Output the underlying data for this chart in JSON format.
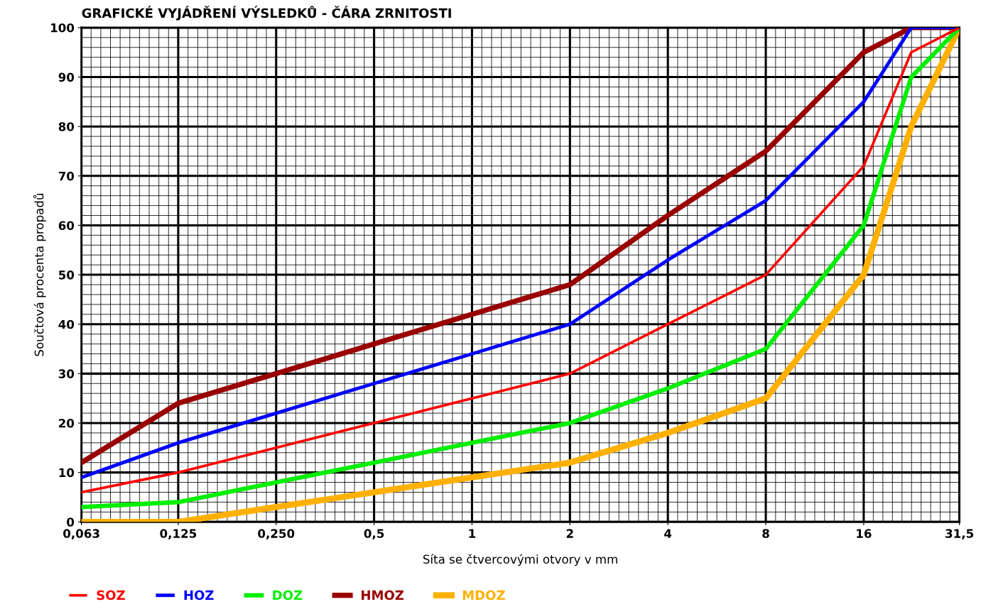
{
  "chart_data": {
    "type": "line",
    "title": "GRAFICKÉ VYJÁDŘENÍ VÝSLEDKŮ - ČÁRA ZRNITOSTI",
    "xlabel": "Síta se čtvercovými otvory v mm",
    "ylabel": "Součtová procenta propadů",
    "log": "x",
    "x": [
      0.063,
      0.125,
      0.25,
      0.5,
      1,
      2,
      4,
      8,
      16,
      22.4,
      31.5
    ],
    "series": [
      {
        "name": "SOZ",
        "color": "#ff0000",
        "values": [
          6,
          10,
          15,
          20,
          25,
          30,
          40,
          50,
          72,
          95,
          100
        ]
      },
      {
        "name": "HOZ",
        "color": "#0000ff",
        "values": [
          9,
          16,
          22,
          28,
          34,
          40,
          53,
          65,
          85,
          100,
          100
        ]
      },
      {
        "name": "DOZ",
        "color": "#00ee00",
        "values": [
          3,
          4,
          8,
          12,
          16,
          20,
          27,
          35,
          60,
          90,
          100
        ]
      },
      {
        "name": "HMOZ",
        "color": "#990000",
        "values": [
          12,
          24,
          30,
          36,
          42,
          48,
          62,
          75,
          95,
          100,
          100
        ]
      },
      {
        "name": "MDOZ",
        "color": "#ffb000",
        "values": [
          0,
          0,
          3,
          6,
          9,
          12,
          18,
          25,
          50,
          80,
          100
        ]
      }
    ],
    "xlim": [
      0.063,
      31.5
    ],
    "xticks": [
      {
        "value": 0.063,
        "label": "0,063"
      },
      {
        "value": 0.125,
        "label": "0,125"
      },
      {
        "value": 0.25,
        "label": "0,250"
      },
      {
        "value": 0.5,
        "label": "0,5"
      },
      1,
      2,
      4,
      8,
      16,
      {
        "value": 31.5,
        "label": "31,5"
      }
    ],
    "ylim": [
      0,
      100
    ],
    "yticks": [
      0,
      10,
      20,
      30,
      40,
      50,
      60,
      70,
      80,
      90,
      100
    ],
    "grid": true,
    "legend": "bottom left",
    "marker": "none",
    "line_style": "solid"
  }
}
